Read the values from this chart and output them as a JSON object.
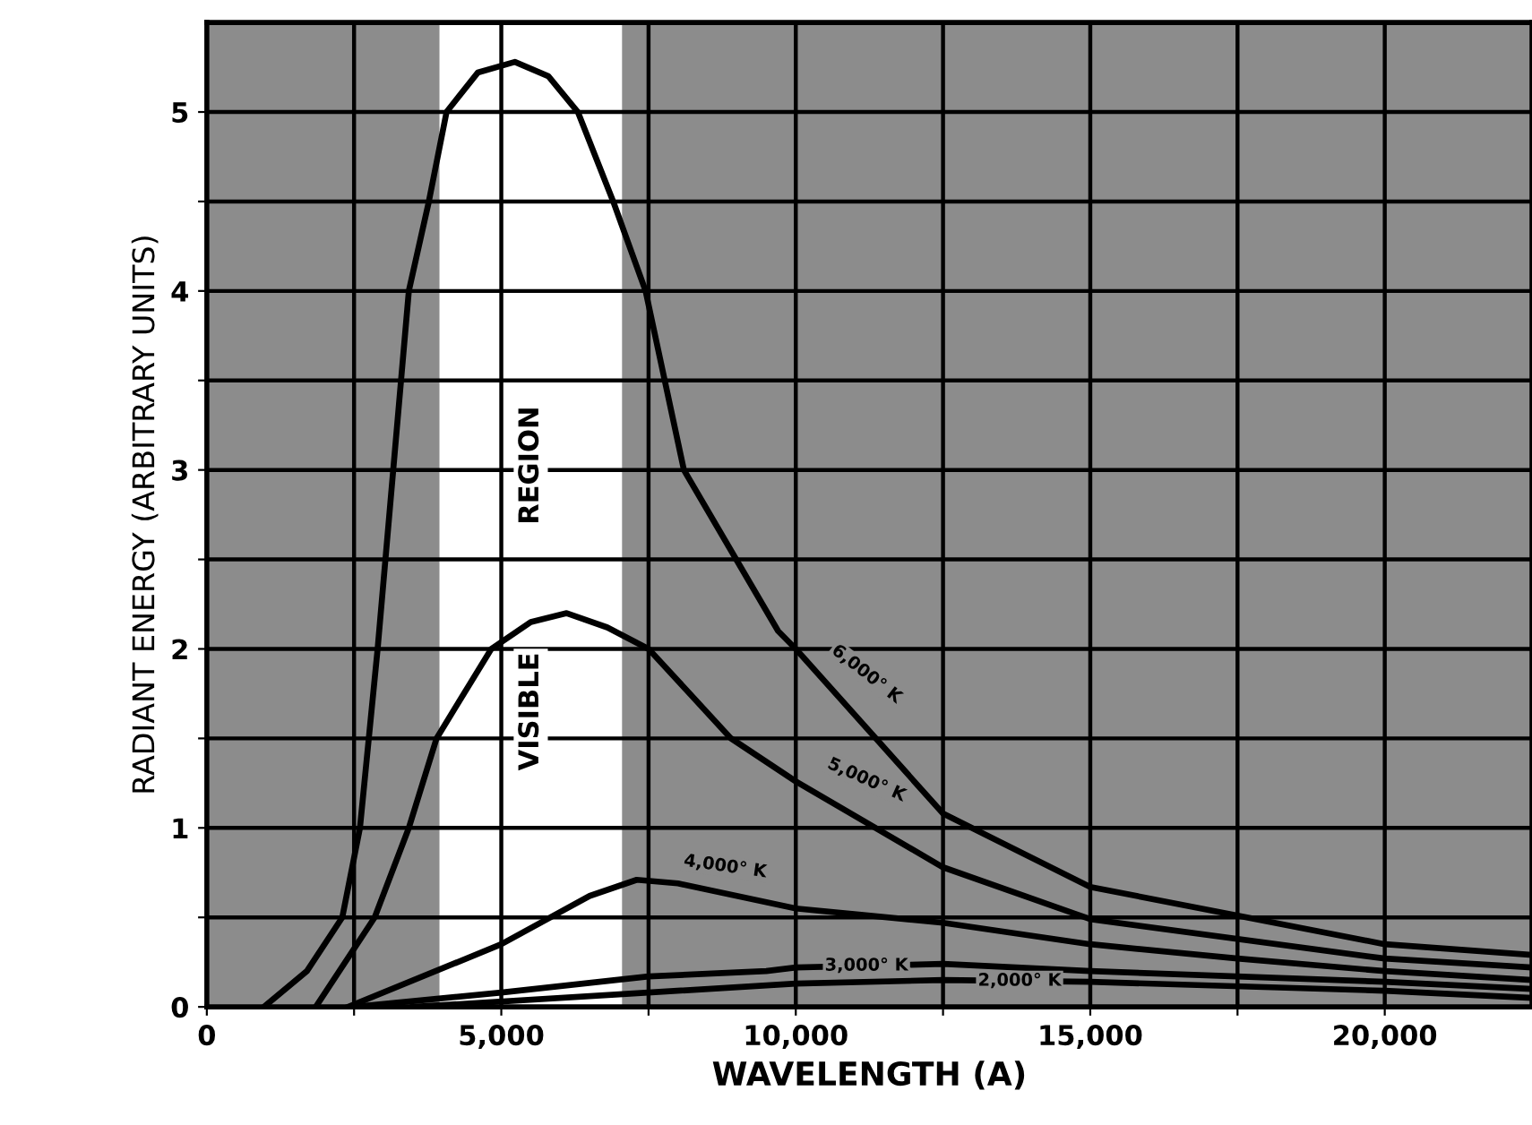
{
  "chart_data": {
    "type": "line",
    "xlabel": "WAVELENGTH (A)",
    "ylabel": "RADIANT ENERGY (ARBITRARY UNITS)",
    "xlim": [
      0,
      22500
    ],
    "ylim": [
      0,
      5.5
    ],
    "xticks": [
      0,
      {
        "value": 2500,
        "label": null
      },
      {
        "value": 5000,
        "label": "5,000"
      },
      {
        "value": 7500,
        "label": null
      },
      {
        "value": 10000,
        "label": "10,000"
      },
      {
        "value": 12500,
        "label": null
      },
      {
        "value": 15000,
        "label": "15,000"
      },
      {
        "value": 17500,
        "label": null
      },
      {
        "value": 20000,
        "label": "20,000"
      }
    ],
    "yticks": [
      0,
      {
        "value": 0.5,
        "label": null
      },
      1,
      {
        "value": 1.5,
        "label": null
      },
      2,
      {
        "value": 2.5,
        "label": null
      },
      3,
      {
        "value": 3.5,
        "label": null
      },
      4,
      {
        "value": 4.5,
        "label": null
      },
      5
    ],
    "grid": true,
    "marker": "none",
    "line_style": "solid",
    "bands": [
      {
        "axis": "x",
        "from": 3950,
        "to": 7050,
        "label": "VISIBLE REGION",
        "color": "#ffffff"
      }
    ],
    "series": [
      {
        "name": "6,000° K",
        "color": "#000000",
        "x": [
          970,
          1700,
          2300,
          2600,
          2900,
          3430,
          3770,
          4070,
          4600,
          5230,
          5800,
          6300,
          6900,
          7450,
          8100,
          9700,
          10000,
          12500,
          15000,
          20000,
          22500
        ],
        "values": [
          0,
          0.2,
          0.5,
          1,
          2,
          4,
          4.5,
          5,
          5.22,
          5.28,
          5.2,
          5,
          4.5,
          4,
          3,
          2.1,
          2.0,
          1.08,
          0.67,
          0.35,
          0.29
        ]
      },
      {
        "name": "5,000° K",
        "color": "#000000",
        "x": [
          1850,
          2850,
          3430,
          3900,
          4830,
          5500,
          6110,
          6800,
          7500,
          8900,
          10000,
          12500,
          15000,
          20000,
          22500
        ],
        "values": [
          0,
          0.5,
          1,
          1.5,
          2,
          2.15,
          2.2,
          2.12,
          2,
          1.5,
          1.26,
          0.78,
          0.49,
          0.27,
          0.22
        ]
      },
      {
        "name": "4,000° K",
        "color": "#000000",
        "x": [
          2400,
          5000,
          6500,
          7300,
          8000,
          10000,
          12500,
          15000,
          17500,
          20000,
          22500
        ],
        "values": [
          0,
          0.35,
          0.62,
          0.71,
          0.69,
          0.55,
          0.47,
          0.35,
          0.27,
          0.2,
          0.15
        ]
      },
      {
        "name": "3,000° K",
        "color": "#000000",
        "x": [
          2500,
          5000,
          7500,
          9500,
          10000,
          12500,
          15000,
          20000,
          22500
        ],
        "values": [
          0,
          0.08,
          0.17,
          0.2,
          0.22,
          0.24,
          0.2,
          0.14,
          0.1
        ]
      },
      {
        "name": "2,000° K",
        "color": "#000000",
        "x": [
          3500,
          7000,
          10000,
          12500,
          15000,
          20000,
          22500
        ],
        "values": [
          0,
          0.07,
          0.13,
          0.15,
          0.14,
          0.09,
          0.05
        ]
      }
    ]
  }
}
